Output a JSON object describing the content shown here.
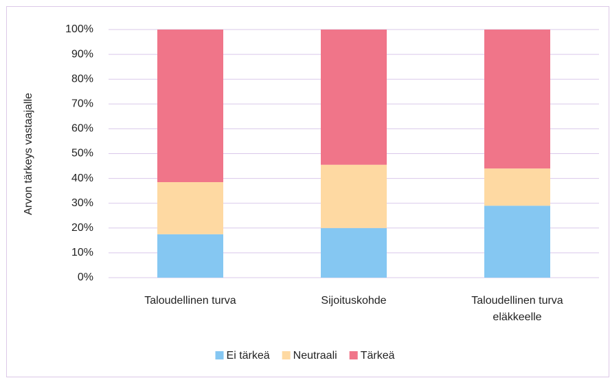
{
  "chart_data": {
    "type": "bar",
    "stacked": true,
    "y_label": "Arvon tärkeys vastaajalle",
    "categories": [
      "Taloudellinen turva",
      "Sijoituskohde",
      "Taloudellinen turva eläkkeelle"
    ],
    "series": [
      {
        "name": "Ei tärkeä",
        "color": "#85c7f2",
        "values": [
          17.5,
          20,
          29
        ]
      },
      {
        "name": "Neutraali",
        "color": "#fed9a2",
        "values": [
          21,
          25.5,
          15
        ]
      },
      {
        "name": "Tärkeä",
        "color": "#f07589",
        "values": [
          61.5,
          54.5,
          56
        ]
      }
    ],
    "ylim": [
      0,
      100
    ],
    "yticks": [
      {
        "value": 0,
        "label": "0%"
      },
      {
        "value": 10,
        "label": "10%"
      },
      {
        "value": 20,
        "label": "20%"
      },
      {
        "value": 30,
        "label": "30%"
      },
      {
        "value": 40,
        "label": "40%"
      },
      {
        "value": 50,
        "label": "50%"
      },
      {
        "value": 60,
        "label": "60%"
      },
      {
        "value": 70,
        "label": "70%"
      },
      {
        "value": 80,
        "label": "80%"
      },
      {
        "value": 90,
        "label": "90%"
      },
      {
        "value": 100,
        "label": "100%"
      }
    ],
    "grid": true,
    "legend": "bottom"
  }
}
